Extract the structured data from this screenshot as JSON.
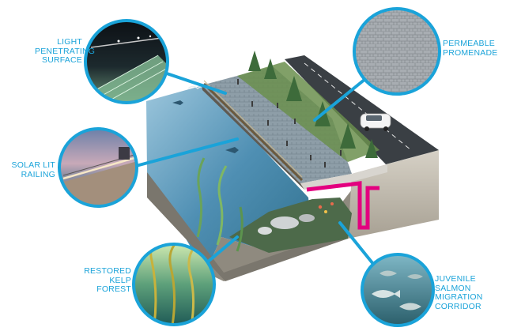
{
  "callouts": {
    "light_surface": "LIGHT\nPENETRATING\nSURFACE",
    "permeable_promenade": "PERMEABLE\nPROMENADE",
    "solar_railing": "SOLAR LIT\nRAILING",
    "kelp_forest": "RESTORED\nKELP\nFOREST",
    "salmon_corridor": "JUVENILE\nSALMON\nMIGRATION\nCORRIDOR"
  },
  "colors": {
    "accent": "#1aa3d9",
    "water": "#3f7fa6",
    "promenade": "#8e9ea8",
    "road": "#3a3f44",
    "structure": "#e3007f",
    "soil": "#b8b2a4"
  }
}
